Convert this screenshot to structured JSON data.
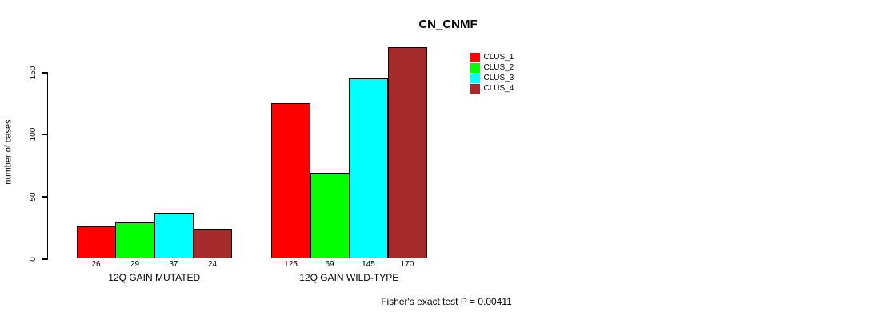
{
  "chart_data": {
    "type": "bar",
    "title": "CN_CNMF",
    "xlabel": "",
    "ylabel": "number of cases",
    "categories": [
      "12Q GAIN MUTATED",
      "12Q GAIN WILD-TYPE"
    ],
    "series": [
      {
        "name": "CLUS_1",
        "color": "#FF0000",
        "values": [
          26,
          125
        ]
      },
      {
        "name": "CLUS_2",
        "color": "#00FF00",
        "values": [
          29,
          69
        ]
      },
      {
        "name": "CLUS_3",
        "color": "#00FFFF",
        "values": [
          37,
          145
        ]
      },
      {
        "name": "CLUS_4",
        "color": "#A52A2A",
        "values": [
          24,
          170
        ]
      }
    ],
    "bar_value_labels": [
      [
        26,
        29,
        37,
        24
      ],
      [
        125,
        69,
        145,
        170
      ]
    ],
    "yticks": [
      0,
      50,
      100,
      150
    ],
    "ylim": [
      0,
      170
    ],
    "grid": false,
    "legend_position": "upper-right-inside",
    "footnote": "Fisher's exact test P = 0.00411"
  }
}
